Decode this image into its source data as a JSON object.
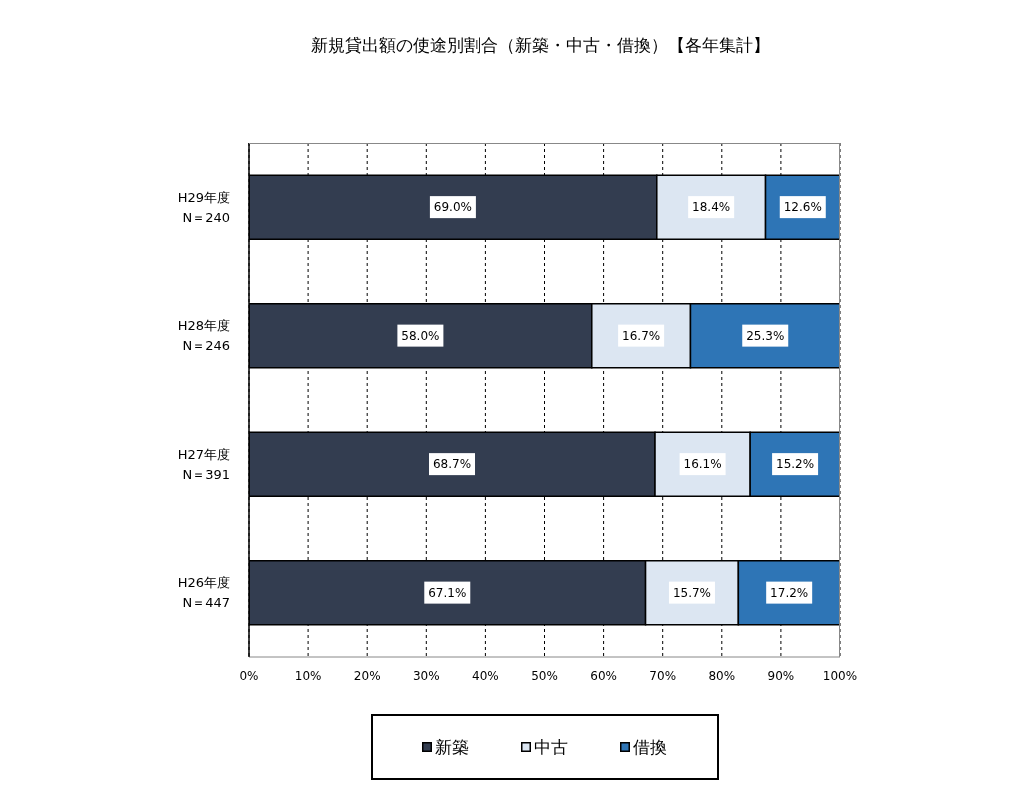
{
  "chart_data": {
    "type": "bar",
    "orientation": "horizontal",
    "stacked": true,
    "title": "新規貸出額の使途別割合（新築・中古・借換）【各年集計】",
    "categories": [
      "H29年度\nN＝240",
      "H28年度\nN＝246",
      "H27年度\nN＝391",
      "H26年度\nN＝447"
    ],
    "series": [
      {
        "name": "新築",
        "color": "#333d50",
        "values": [
          69.0,
          58.0,
          68.7,
          67.1
        ],
        "value_labels": [
          "69.0%",
          "58.0%",
          "68.7%",
          "67.1%"
        ]
      },
      {
        "name": "中古",
        "color": "#dce6f2",
        "values": [
          18.4,
          16.7,
          16.1,
          15.7
        ],
        "value_labels": [
          "18.4%",
          "16.7%",
          "16.1%",
          "15.7%"
        ]
      },
      {
        "name": "借換",
        "color": "#2e75b6",
        "values": [
          12.6,
          25.3,
          15.2,
          17.2
        ],
        "value_labels": [
          "12.6%",
          "25.3%",
          "15.2%",
          "17.2%"
        ]
      }
    ],
    "xlim": [
      0,
      100
    ],
    "xticks": [
      {
        "value": 0,
        "label": "0%"
      },
      {
        "value": 10,
        "label": "10%"
      },
      {
        "value": 20,
        "label": "20%"
      },
      {
        "value": 30,
        "label": "30%"
      },
      {
        "value": 40,
        "label": "40%"
      },
      {
        "value": 50,
        "label": "50%"
      },
      {
        "value": 60,
        "label": "60%"
      },
      {
        "value": 70,
        "label": "70%"
      },
      {
        "value": 80,
        "label": "80%"
      },
      {
        "value": 90,
        "label": "90%"
      },
      {
        "value": 100,
        "label": "100%"
      }
    ],
    "grid": "x",
    "legend": "bottom"
  }
}
